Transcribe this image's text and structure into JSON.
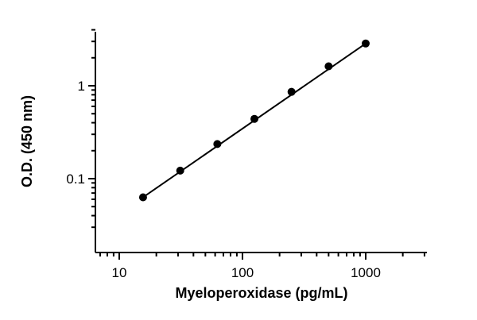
{
  "chart_data": {
    "type": "scatter",
    "title": "",
    "xlabel": "Myeloperoxidase (pg/mL)",
    "ylabel": "O.D. (450 nm)",
    "x_scale": "log",
    "y_scale": "log",
    "xlim": [
      7,
      3000
    ],
    "ylim": [
      0.028,
      4.2
    ],
    "x_ticks": [
      {
        "value": 10,
        "label": "10"
      },
      {
        "value": 100,
        "label": "100"
      },
      {
        "value": 1000,
        "label": "1000"
      }
    ],
    "y_ticks": [
      {
        "value": 0.1,
        "label": "0.1"
      },
      {
        "value": 1,
        "label": "1"
      }
    ],
    "grid": false,
    "series": [
      {
        "x": [
          15.6,
          31.25,
          62.5,
          125,
          250,
          500,
          1000
        ],
        "y": [
          0.063,
          0.122,
          0.236,
          0.44,
          0.86,
          1.62,
          2.85
        ],
        "marker": "circle",
        "line": "fit",
        "color": "#000000"
      }
    ]
  }
}
